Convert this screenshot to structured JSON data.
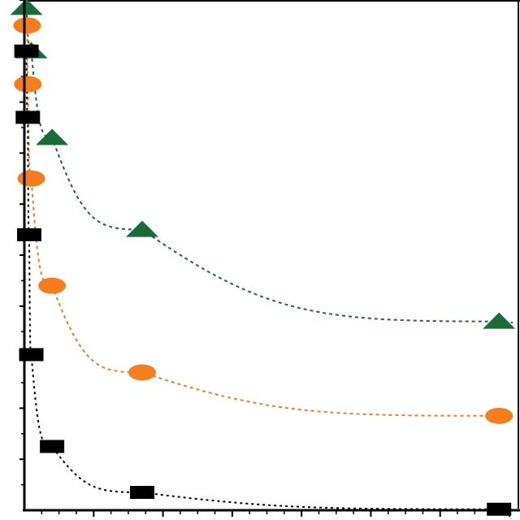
{
  "chart_data": {
    "type": "scatter",
    "title": "",
    "xlabel": "",
    "ylabel": "",
    "xlim": [
      0,
      700
    ],
    "ylim": [
      0,
      10
    ],
    "grid": false,
    "legend": "none",
    "series": [
      {
        "color": "#1b6b3a",
        "marker": "triangle",
        "points": [
          [
            3,
            9.85
          ],
          [
            10,
            9.0
          ],
          [
            40,
            7.3
          ],
          [
            170,
            5.5
          ],
          [
            685,
            3.7
          ]
        ]
      },
      {
        "color": "#f57c1f",
        "marker": "circle",
        "points": [
          [
            4,
            9.5
          ],
          [
            5,
            8.35
          ],
          [
            10,
            6.5
          ],
          [
            40,
            4.4
          ],
          [
            170,
            2.7
          ],
          [
            685,
            1.85
          ]
        ]
      },
      {
        "color": "#000000",
        "marker": "square",
        "points": [
          [
            3,
            9.0
          ],
          [
            5,
            7.7
          ],
          [
            7,
            5.4
          ],
          [
            10,
            3.05
          ],
          [
            40,
            1.25
          ],
          [
            170,
            0.35
          ],
          [
            685,
            0.02
          ]
        ]
      }
    ]
  }
}
